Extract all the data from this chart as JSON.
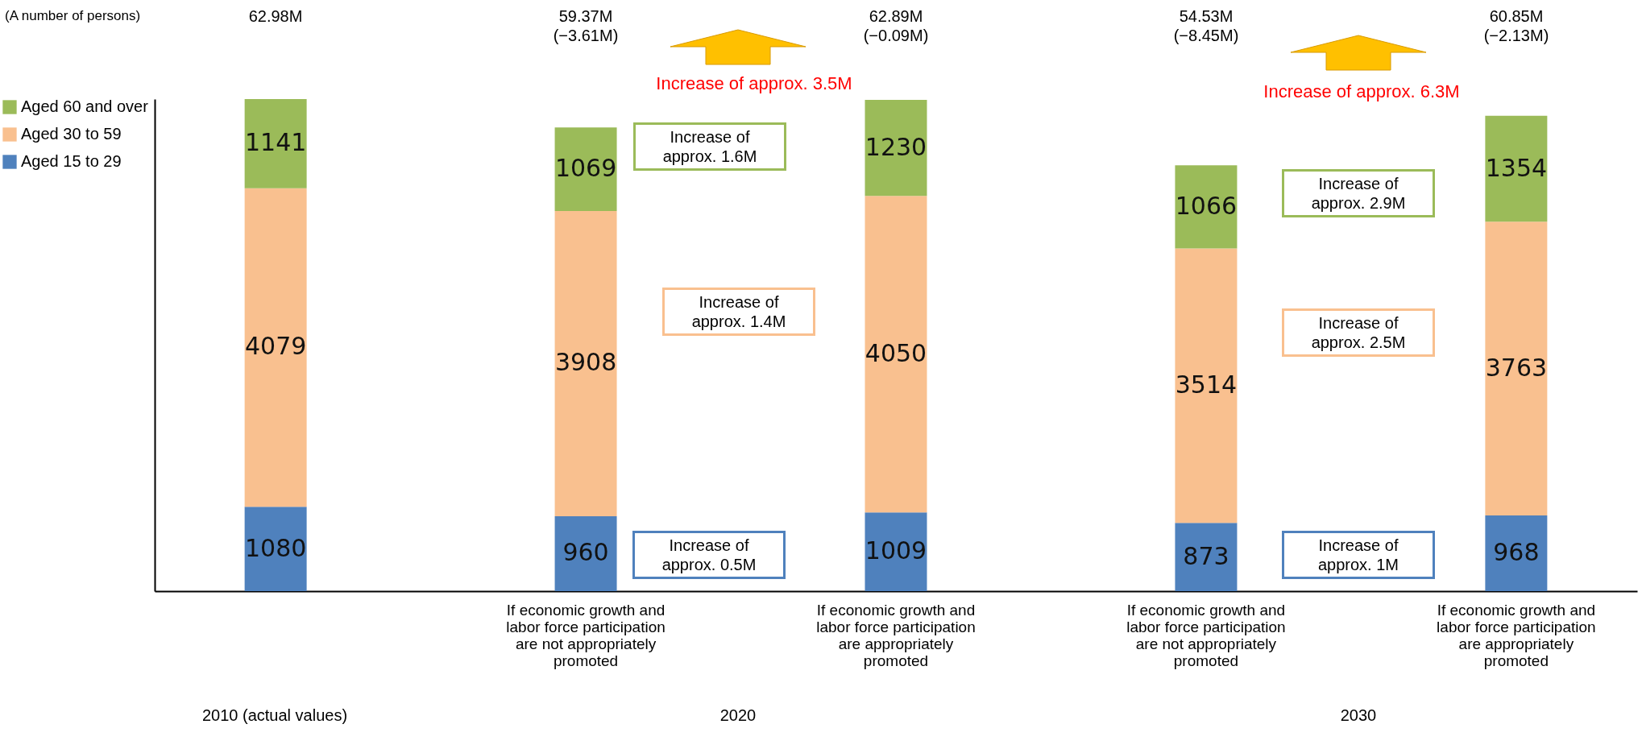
{
  "chart_data": {
    "type": "bar",
    "stacked": true,
    "data_labels": true,
    "legend": "left",
    "grid": false,
    "categories": [
      null,
      "If economic growth and\nlabor force participation\nare not appropriately\npromoted",
      "If economic growth and\nlabor force participation\nare appropriately\npromoted",
      "If economic growth and\nlabor force participation\nare not appropriately\npromoted",
      "If economic growth and\nlabor force participation\nare appropriately\npromoted"
    ],
    "series": [
      {
        "name": "Aged 15 to 29",
        "color": "#4f81bd",
        "values": [
          1080,
          960,
          1009,
          873,
          968
        ]
      },
      {
        "name": "Aged 30 to 59",
        "color": "#f9c08f",
        "values": [
          4079,
          3908,
          4050,
          3514,
          3763
        ]
      },
      {
        "name": "Aged 60 and over",
        "color": "#9bbb59",
        "values": [
          1141,
          1069,
          1230,
          1066,
          1354
        ]
      }
    ],
    "annotations": [
      "(A number of persons)",
      "62.98M",
      "59.37M\n(−3.61M)",
      "62.89M\n(−0.09M)",
      "54.53M\n(−8.45M)",
      "60.85M\n(−2.13M)",
      "Increase of approx. 3.5M",
      "Increase of approx. 6.3M",
      "Increase of\napprox. 1.6M",
      "Increase of\napprox. 1.4M",
      "Increase of\napprox. 0.5M",
      "Increase of\napprox. 2.9M",
      "Increase of\napprox. 2.5M",
      "Increase of\napprox. 1M",
      "2010 (actual values)",
      "2020",
      "2030"
    ]
  }
}
